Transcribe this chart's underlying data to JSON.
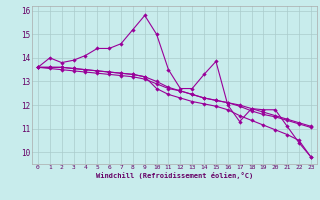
{
  "xlabel": "Windchill (Refroidissement éolien,°C)",
  "background_color": "#c8ecec",
  "line_color": "#990099",
  "grid_color": "#aacccc",
  "ylim": [
    9.5,
    16.2
  ],
  "xlim": [
    -0.5,
    23.5
  ],
  "yticks": [
    10,
    11,
    12,
    13,
    14,
    15,
    16
  ],
  "xticks": [
    0,
    1,
    2,
    3,
    4,
    5,
    6,
    7,
    8,
    9,
    10,
    11,
    12,
    13,
    14,
    15,
    16,
    17,
    18,
    19,
    20,
    21,
    22,
    23
  ],
  "series1": [
    13.6,
    14.0,
    13.8,
    13.9,
    14.1,
    14.4,
    14.4,
    14.6,
    15.2,
    15.8,
    15.0,
    13.5,
    12.7,
    12.7,
    13.3,
    13.85,
    12.0,
    11.3,
    11.85,
    11.8,
    11.8,
    11.1,
    10.4,
    9.8
  ],
  "series2": [
    13.6,
    13.55,
    13.5,
    13.45,
    13.4,
    13.35,
    13.3,
    13.25,
    13.2,
    13.1,
    12.9,
    12.7,
    12.6,
    12.45,
    12.3,
    12.2,
    12.1,
    12.0,
    11.85,
    11.7,
    11.55,
    11.4,
    11.25,
    11.1
  ],
  "series3": [
    13.6,
    13.6,
    13.6,
    13.55,
    13.5,
    13.45,
    13.4,
    13.35,
    13.3,
    13.2,
    13.0,
    12.75,
    12.6,
    12.45,
    12.3,
    12.2,
    12.1,
    11.95,
    11.75,
    11.6,
    11.5,
    11.35,
    11.2,
    11.05
  ],
  "series4": [
    13.6,
    13.6,
    13.6,
    13.55,
    13.5,
    13.45,
    13.4,
    13.35,
    13.3,
    13.2,
    12.7,
    12.45,
    12.3,
    12.15,
    12.05,
    11.95,
    11.8,
    11.55,
    11.35,
    11.15,
    10.95,
    10.75,
    10.5,
    9.8
  ]
}
